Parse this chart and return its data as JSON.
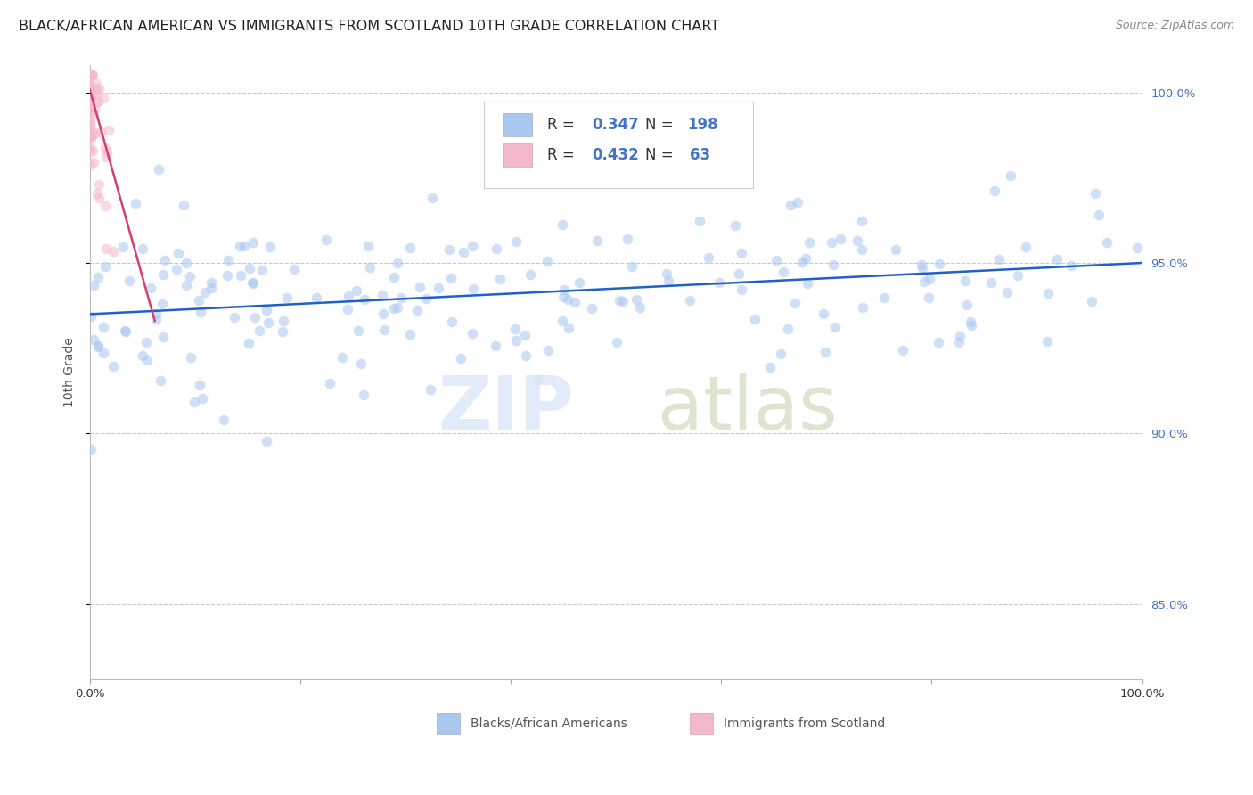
{
  "title": "BLACK/AFRICAN AMERICAN VS IMMIGRANTS FROM SCOTLAND 10TH GRADE CORRELATION CHART",
  "source": "Source: ZipAtlas.com",
  "ylabel": "10th Grade",
  "legend_label1": "Blacks/African Americans",
  "legend_label2": "Immigrants from Scotland",
  "xlim": [
    0.0,
    1.0
  ],
  "ylim": [
    0.828,
    1.008
  ],
  "yticks": [
    0.85,
    0.9,
    0.95,
    1.0
  ],
  "ytick_labels": [
    "85.0%",
    "90.0%",
    "95.0%",
    "100.0%"
  ],
  "xtick_labels": [
    "0.0%",
    "",
    "",
    "",
    "",
    "100.0%"
  ],
  "blue_color": "#a8c8f0",
  "pink_color": "#f4b8cc",
  "blue_line_color": "#2060c8",
  "pink_line_color": "#d04070",
  "title_color": "#222222",
  "source_color": "#888888",
  "right_label_color": "#4472c4",
  "grid_color": "#c8c8c8",
  "background_color": "#ffffff",
  "blue_line_y0": 0.935,
  "blue_line_y1": 0.95,
  "pink_line_x0": 0.0,
  "pink_line_x1": 0.062,
  "pink_line_y0": 1.001,
  "pink_line_y1": 0.933,
  "marker_size": 70,
  "marker_alpha": 0.55,
  "title_fontsize": 11.5,
  "axis_fontsize": 10,
  "tick_fontsize": 9.5,
  "legend_fontsize": 12
}
